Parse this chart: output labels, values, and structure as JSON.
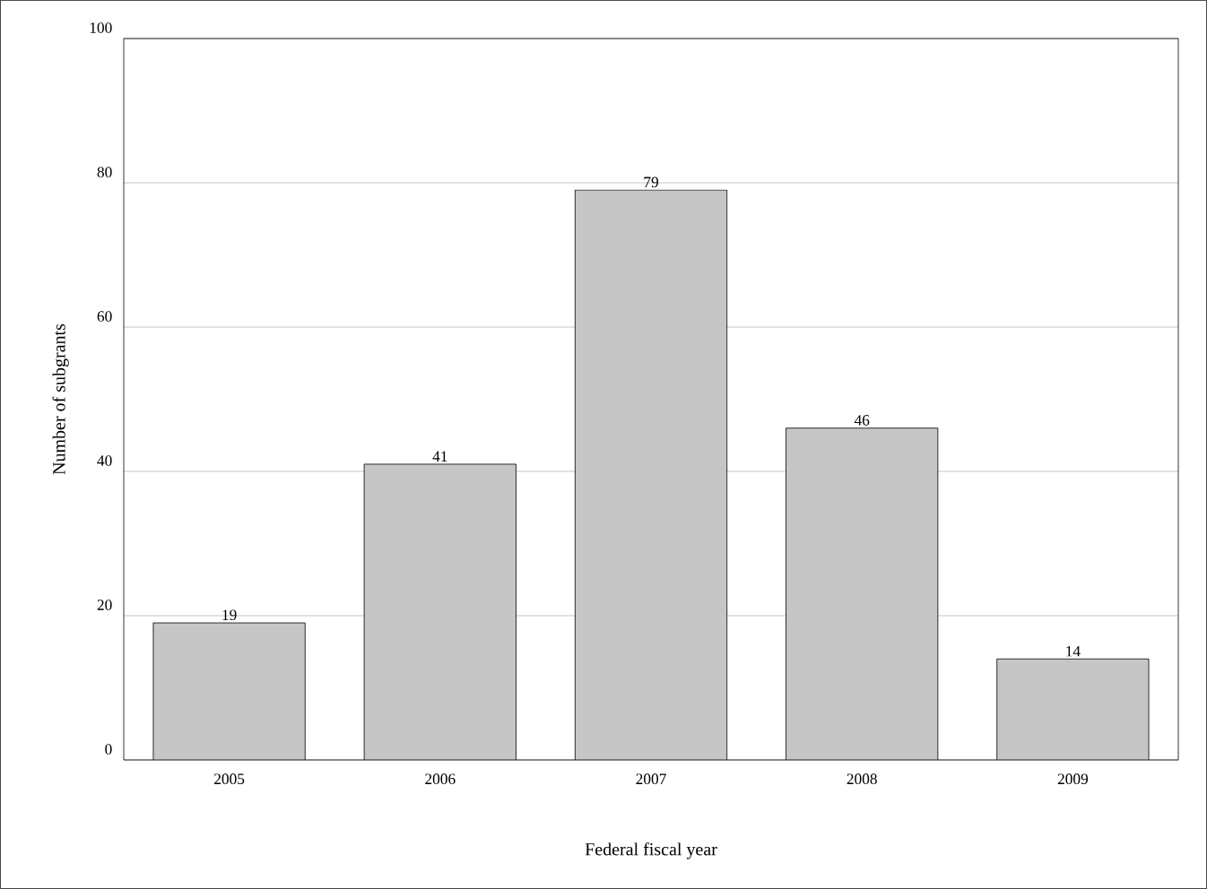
{
  "chart_data": {
    "type": "bar",
    "xlabel": "Federal fiscal year",
    "ylabel": "Number of  subgrants",
    "categories": [
      "2005",
      "2006",
      "2007",
      "2008",
      "2009"
    ],
    "values": [
      19,
      41,
      79,
      46,
      14
    ],
    "color": "#c6c6c6",
    "ylim": [
      0,
      100
    ],
    "yticks": [
      0,
      20,
      40,
      60,
      80,
      100
    ],
    "grid": "y",
    "data_labels": true
  }
}
